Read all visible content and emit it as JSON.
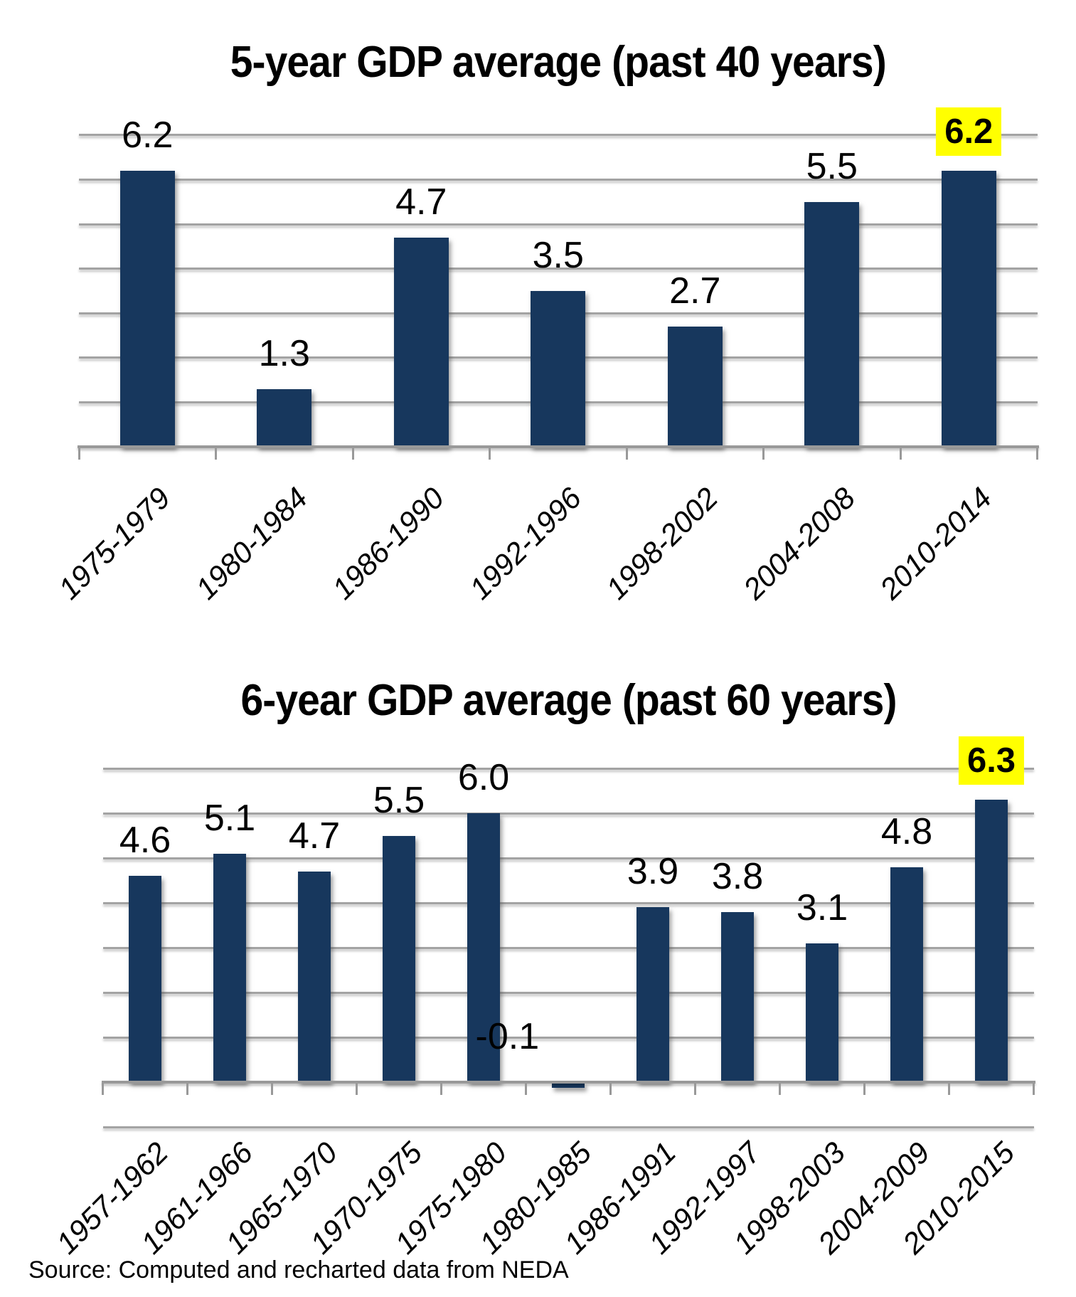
{
  "page": {
    "source_note": "Source: Computed and recharted data from NEDA"
  },
  "colors": {
    "bar": "#17375D",
    "highlight_bg": "#FFFF00",
    "gridline": "#A3A3A3",
    "axis": "#999999",
    "text": "#000000"
  },
  "chart_data": [
    {
      "type": "bar",
      "title": "5-year GDP average (past 40 years)",
      "categories": [
        "1975-1979",
        "1980-1984",
        "1986-1990",
        "1992-1996",
        "1998-2002",
        "2004-2008",
        "2010-2014"
      ],
      "values": [
        6.2,
        1.3,
        4.7,
        3.5,
        2.7,
        5.5,
        6.2
      ],
      "data_labels": [
        "6.2",
        "1.3",
        "4.7",
        "3.5",
        "2.7",
        "5.5",
        "6.2"
      ],
      "highlighted_index": 6,
      "xlabel": "",
      "ylabel": "",
      "ylim": [
        0,
        7
      ],
      "gridline_step": 1,
      "grid": true,
      "legend": false
    },
    {
      "type": "bar",
      "title": "6-year GDP average (past 60 years)",
      "categories": [
        "1957-1962",
        "1961-1966",
        "1965-1970",
        "1970-1975",
        "1975-1980",
        "1980-1985",
        "1986-1991",
        "1992-1997",
        "1998-2003",
        "2004-2009",
        "2010-2015"
      ],
      "values": [
        4.6,
        5.1,
        4.7,
        5.5,
        6.0,
        -0.1,
        3.9,
        3.8,
        3.1,
        4.8,
        6.3
      ],
      "data_labels": [
        "4.6",
        "5.1",
        "4.7",
        "5.5",
        "6.0",
        "-0.1",
        "3.9",
        "3.8",
        "3.1",
        "4.8",
        "6.3"
      ],
      "highlighted_index": 10,
      "xlabel": "",
      "ylabel": "",
      "ylim": [
        -1,
        7
      ],
      "gridline_step": 1,
      "grid": true,
      "legend": false
    }
  ]
}
